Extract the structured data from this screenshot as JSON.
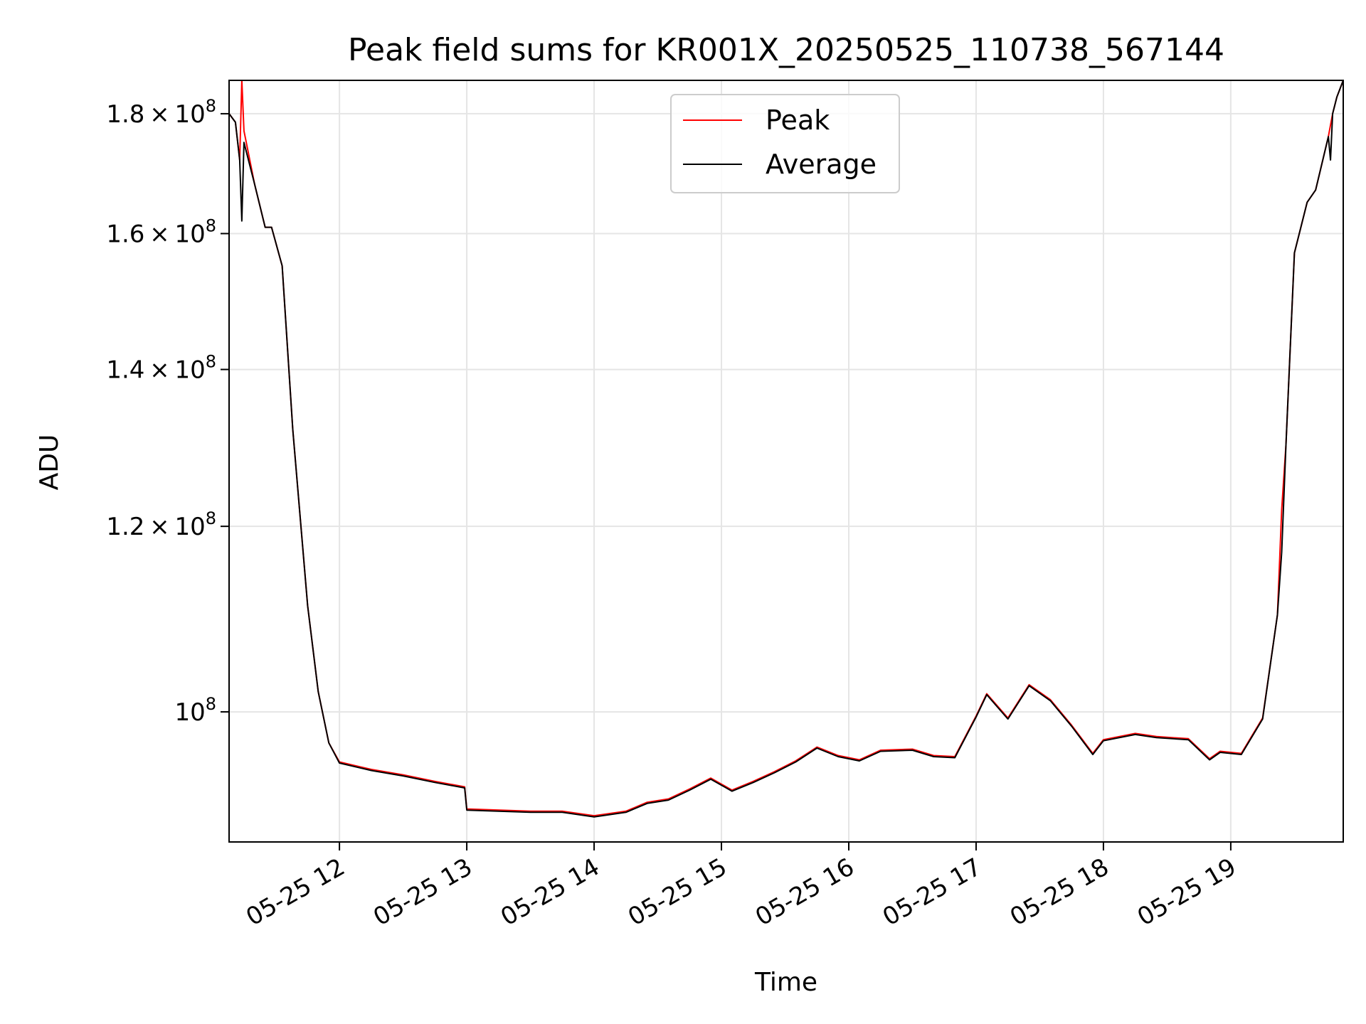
{
  "chart_data": {
    "type": "line",
    "title": "Peak field sums for KR001X_20250525_110738_567144",
    "xlabel": "Time",
    "ylabel": "ADU",
    "y_scale": "log",
    "x_range": [
      "2025-05-25T11:08",
      "2025-05-25T19:53"
    ],
    "ylim": [
      88000000,
      186000000
    ],
    "grid": true,
    "legend_position": "top-center",
    "x_ticks": [
      {
        "t": "2025-05-25T12:00",
        "label": "05-25 12"
      },
      {
        "t": "2025-05-25T13:00",
        "label": "05-25 13"
      },
      {
        "t": "2025-05-25T14:00",
        "label": "05-25 14"
      },
      {
        "t": "2025-05-25T15:00",
        "label": "05-25 15"
      },
      {
        "t": "2025-05-25T16:00",
        "label": "05-25 16"
      },
      {
        "t": "2025-05-25T17:00",
        "label": "05-25 17"
      },
      {
        "t": "2025-05-25T18:00",
        "label": "05-25 18"
      },
      {
        "t": "2025-05-25T19:00",
        "label": "05-25 19"
      }
    ],
    "y_ticks": [
      {
        "value": 100000000,
        "mantissa": "",
        "exponent": "8",
        "base": "10"
      },
      {
        "value": 120000000,
        "mantissa": "1.2",
        "exponent": "8",
        "base": "10"
      },
      {
        "value": 140000000,
        "mantissa": "1.4",
        "exponent": "8",
        "base": "10"
      },
      {
        "value": 160000000,
        "mantissa": "1.6",
        "exponent": "8",
        "base": "10"
      },
      {
        "value": 180000000,
        "mantissa": "1.8",
        "exponent": "8",
        "base": "10"
      }
    ],
    "series": [
      {
        "name": "Peak",
        "color": "#ff0000",
        "points": [
          [
            "2025-05-25T11:08",
            180000000
          ],
          [
            "2025-05-25T11:11",
            178500000
          ],
          [
            "2025-05-25T11:13",
            172000000
          ],
          [
            "2025-05-25T11:14",
            186000000
          ],
          [
            "2025-05-25T11:15",
            177000000
          ],
          [
            "2025-05-25T11:20",
            168000000
          ],
          [
            "2025-05-25T11:25",
            161000000
          ],
          [
            "2025-05-25T11:28",
            161000000
          ],
          [
            "2025-05-25T11:33",
            155000000
          ],
          [
            "2025-05-25T11:38",
            132000000
          ],
          [
            "2025-05-25T11:45",
            111000000
          ],
          [
            "2025-05-25T11:50",
            102000000
          ],
          [
            "2025-05-25T11:55",
            97000000
          ],
          [
            "2025-05-25T12:00",
            95200000
          ],
          [
            "2025-05-25T12:15",
            94500000
          ],
          [
            "2025-05-25T12:30",
            94000000
          ],
          [
            "2025-05-25T12:45",
            93400000
          ],
          [
            "2025-05-25T12:59",
            92900000
          ],
          [
            "2025-05-25T13:00",
            90900000
          ],
          [
            "2025-05-25T13:30",
            90700000
          ],
          [
            "2025-05-25T13:45",
            90700000
          ],
          [
            "2025-05-25T14:00",
            90300000
          ],
          [
            "2025-05-25T14:15",
            90700000
          ],
          [
            "2025-05-25T14:25",
            91500000
          ],
          [
            "2025-05-25T14:35",
            91800000
          ],
          [
            "2025-05-25T14:45",
            92700000
          ],
          [
            "2025-05-25T14:55",
            93700000
          ],
          [
            "2025-05-25T15:05",
            92600000
          ],
          [
            "2025-05-25T15:15",
            93400000
          ],
          [
            "2025-05-25T15:25",
            94300000
          ],
          [
            "2025-05-25T15:35",
            95300000
          ],
          [
            "2025-05-25T15:45",
            96600000
          ],
          [
            "2025-05-25T15:55",
            95800000
          ],
          [
            "2025-05-25T16:05",
            95400000
          ],
          [
            "2025-05-25T16:15",
            96300000
          ],
          [
            "2025-05-25T16:30",
            96400000
          ],
          [
            "2025-05-25T16:40",
            95800000
          ],
          [
            "2025-05-25T16:50",
            95700000
          ],
          [
            "2025-05-25T17:00",
            99600000
          ],
          [
            "2025-05-25T17:05",
            101800000
          ],
          [
            "2025-05-25T17:15",
            99400000
          ],
          [
            "2025-05-25T17:25",
            102700000
          ],
          [
            "2025-05-25T17:35",
            101200000
          ],
          [
            "2025-05-25T17:45",
            98700000
          ],
          [
            "2025-05-25T17:55",
            96000000
          ],
          [
            "2025-05-25T18:00",
            97300000
          ],
          [
            "2025-05-25T18:15",
            97900000
          ],
          [
            "2025-05-25T18:25",
            97600000
          ],
          [
            "2025-05-25T18:40",
            97400000
          ],
          [
            "2025-05-25T18:50",
            95500000
          ],
          [
            "2025-05-25T18:55",
            96200000
          ],
          [
            "2025-05-25T19:05",
            96000000
          ],
          [
            "2025-05-25T19:15",
            99400000
          ],
          [
            "2025-05-25T19:22",
            110000000
          ],
          [
            "2025-05-25T19:24",
            122000000
          ],
          [
            "2025-05-25T19:26",
            130000000
          ],
          [
            "2025-05-25T19:30",
            157000000
          ],
          [
            "2025-05-25T19:36",
            165000000
          ],
          [
            "2025-05-25T19:40",
            167000000
          ],
          [
            "2025-05-25T19:46",
            176000000
          ],
          [
            "2025-05-25T19:48",
            180000000
          ],
          [
            "2025-05-25T19:50",
            183000000
          ],
          [
            "2025-05-25T19:53",
            186000000
          ]
        ]
      },
      {
        "name": "Average",
        "color": "#000000",
        "points": [
          [
            "2025-05-25T11:08",
            180000000
          ],
          [
            "2025-05-25T11:11",
            178500000
          ],
          [
            "2025-05-25T11:13",
            172000000
          ],
          [
            "2025-05-25T11:14",
            162000000
          ],
          [
            "2025-05-25T11:15",
            175000000
          ],
          [
            "2025-05-25T11:20",
            168000000
          ],
          [
            "2025-05-25T11:25",
            161000000
          ],
          [
            "2025-05-25T11:28",
            161000000
          ],
          [
            "2025-05-25T11:33",
            155000000
          ],
          [
            "2025-05-25T11:38",
            132000000
          ],
          [
            "2025-05-25T11:45",
            111000000
          ],
          [
            "2025-05-25T11:50",
            102000000
          ],
          [
            "2025-05-25T11:55",
            97000000
          ],
          [
            "2025-05-25T12:00",
            95100000
          ],
          [
            "2025-05-25T12:15",
            94400000
          ],
          [
            "2025-05-25T12:30",
            93900000
          ],
          [
            "2025-05-25T12:45",
            93300000
          ],
          [
            "2025-05-25T12:59",
            92800000
          ],
          [
            "2025-05-25T13:00",
            90800000
          ],
          [
            "2025-05-25T13:30",
            90600000
          ],
          [
            "2025-05-25T13:45",
            90600000
          ],
          [
            "2025-05-25T14:00",
            90200000
          ],
          [
            "2025-05-25T14:15",
            90600000
          ],
          [
            "2025-05-25T14:25",
            91400000
          ],
          [
            "2025-05-25T14:35",
            91700000
          ],
          [
            "2025-05-25T14:45",
            92600000
          ],
          [
            "2025-05-25T14:55",
            93600000
          ],
          [
            "2025-05-25T15:05",
            92500000
          ],
          [
            "2025-05-25T15:15",
            93300000
          ],
          [
            "2025-05-25T15:25",
            94200000
          ],
          [
            "2025-05-25T15:35",
            95200000
          ],
          [
            "2025-05-25T15:45",
            96500000
          ],
          [
            "2025-05-25T15:55",
            95700000
          ],
          [
            "2025-05-25T16:05",
            95300000
          ],
          [
            "2025-05-25T16:15",
            96200000
          ],
          [
            "2025-05-25T16:30",
            96300000
          ],
          [
            "2025-05-25T16:40",
            95700000
          ],
          [
            "2025-05-25T16:50",
            95600000
          ],
          [
            "2025-05-25T17:00",
            99500000
          ],
          [
            "2025-05-25T17:05",
            101700000
          ],
          [
            "2025-05-25T17:15",
            99300000
          ],
          [
            "2025-05-25T17:25",
            102600000
          ],
          [
            "2025-05-25T17:35",
            101100000
          ],
          [
            "2025-05-25T17:45",
            98600000
          ],
          [
            "2025-05-25T17:55",
            95900000
          ],
          [
            "2025-05-25T18:00",
            97200000
          ],
          [
            "2025-05-25T18:15",
            97800000
          ],
          [
            "2025-05-25T18:25",
            97500000
          ],
          [
            "2025-05-25T18:40",
            97300000
          ],
          [
            "2025-05-25T18:50",
            95400000
          ],
          [
            "2025-05-25T18:55",
            96100000
          ],
          [
            "2025-05-25T19:05",
            95900000
          ],
          [
            "2025-05-25T19:15",
            99300000
          ],
          [
            "2025-05-25T19:22",
            110000000
          ],
          [
            "2025-05-25T19:24",
            117000000
          ],
          [
            "2025-05-25T19:26",
            130000000
          ],
          [
            "2025-05-25T19:30",
            157000000
          ],
          [
            "2025-05-25T19:36",
            165000000
          ],
          [
            "2025-05-25T19:40",
            167000000
          ],
          [
            "2025-05-25T19:46",
            176000000
          ],
          [
            "2025-05-25T19:47",
            172000000
          ],
          [
            "2025-05-25T19:48",
            180000000
          ],
          [
            "2025-05-25T19:50",
            183000000
          ],
          [
            "2025-05-25T19:53",
            186000000
          ]
        ]
      }
    ]
  }
}
